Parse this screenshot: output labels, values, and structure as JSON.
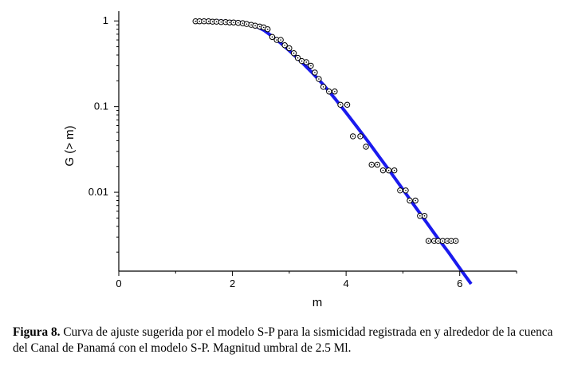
{
  "chart_data": {
    "type": "scatter",
    "xlabel": "m",
    "ylabel": "G (> m)",
    "xlim": [
      0,
      7
    ],
    "ylim": [
      0.0012,
      1.3
    ],
    "y_scale": "log",
    "x_ticks": [
      0,
      2,
      4,
      6
    ],
    "y_ticks": [
      {
        "value": 1,
        "label": "1"
      },
      {
        "value": 0.1,
        "label": "0.1"
      },
      {
        "value": 0.01,
        "label": "0.01"
      }
    ],
    "grid": false,
    "series": [
      {
        "type": "scatter",
        "marker": "open-circle-dot",
        "color": "#000000",
        "x": [
          1.35,
          1.42,
          1.5,
          1.58,
          1.65,
          1.72,
          1.8,
          1.88,
          1.95,
          2.02,
          2.1,
          2.18,
          2.25,
          2.33,
          2.4,
          2.48,
          2.55,
          2.62,
          2.7,
          2.78,
          2.85,
          2.92,
          3.0,
          3.08,
          3.15,
          3.22,
          3.3,
          3.38,
          3.45,
          3.52,
          3.6,
          3.7,
          3.8,
          3.9,
          4.02,
          4.12,
          4.25,
          4.35,
          4.45,
          4.55,
          4.65,
          4.75,
          4.85,
          4.95,
          5.05,
          5.12,
          5.22,
          5.3,
          5.38,
          5.45,
          5.55,
          5.62,
          5.7,
          5.78,
          5.85,
          5.93
        ],
        "y": [
          0.99,
          0.99,
          0.99,
          0.99,
          0.98,
          0.98,
          0.97,
          0.97,
          0.96,
          0.96,
          0.95,
          0.94,
          0.92,
          0.9,
          0.88,
          0.86,
          0.84,
          0.8,
          0.65,
          0.6,
          0.6,
          0.52,
          0.48,
          0.42,
          0.37,
          0.34,
          0.33,
          0.3,
          0.25,
          0.21,
          0.17,
          0.15,
          0.15,
          0.105,
          0.105,
          0.045,
          0.045,
          0.034,
          0.021,
          0.021,
          0.018,
          0.018,
          0.018,
          0.0105,
          0.0105,
          0.008,
          0.008,
          0.0053,
          0.0053,
          0.0027,
          0.0027,
          0.0027,
          0.0027,
          0.0027,
          0.0027,
          0.0027
        ]
      },
      {
        "type": "line",
        "color": "#1a1aee",
        "x": [
          1.4,
          1.6,
          1.8,
          2.0,
          2.2,
          2.4,
          2.55,
          2.7,
          2.85,
          3.0,
          3.2,
          3.4,
          3.6,
          3.8,
          4.0,
          4.2,
          4.4,
          4.6,
          4.8,
          5.0,
          5.2,
          5.4,
          5.6,
          5.8,
          6.0,
          6.2
        ],
        "y": [
          1.0,
          1.0,
          0.99,
          0.98,
          0.95,
          0.88,
          0.78,
          0.66,
          0.55,
          0.45,
          0.34,
          0.25,
          0.18,
          0.125,
          0.085,
          0.057,
          0.038,
          0.025,
          0.0165,
          0.0108,
          0.007,
          0.0046,
          0.003,
          0.002,
          0.0013,
          0.00085
        ]
      }
    ]
  },
  "caption": {
    "label": "Figura 8.",
    "text": " Curva de ajuste sugerida por el modelo S-P para la sismicidad registrada en y alrededor de la cuenca del Canal de Panamá con el modelo S-P. Magnitud umbral de 2.5 Ml."
  }
}
